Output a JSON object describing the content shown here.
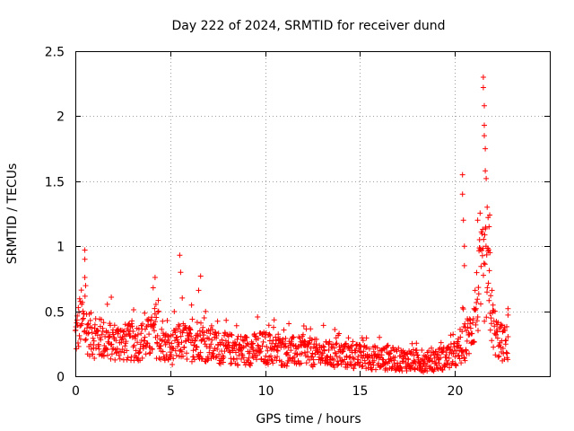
{
  "chart_data": {
    "type": "scatter",
    "title": "Day 222 of 2024, SRMTID for receiver dund",
    "xlabel": "GPS time / hours",
    "ylabel": "SRMTID / TECUs",
    "xlim": [
      0,
      25
    ],
    "ylim": [
      0,
      2.5
    ],
    "xticks": [
      0,
      5,
      10,
      15,
      20
    ],
    "xtick_labels": [
      "0",
      "5",
      "10",
      "15",
      "20"
    ],
    "yticks": [
      0,
      0.5,
      1,
      1.5,
      2,
      2.5
    ],
    "ytick_labels": [
      "0",
      "0.5",
      "1",
      "1.5",
      "2",
      "2.5"
    ],
    "grid": true,
    "marker": "+",
    "series": [
      {
        "name": "SRMTID",
        "color": "#ff0000",
        "envelope": {
          "hours": [
            0.0,
            0.3,
            0.5,
            0.8,
            1.0,
            1.5,
            2.0,
            2.5,
            3.0,
            3.5,
            4.0,
            4.2,
            4.5,
            5.0,
            5.4,
            5.6,
            6.0,
            6.5,
            6.8,
            7.0,
            7.5,
            8.0,
            9.0,
            10.0,
            10.5,
            11.0,
            12.0,
            12.5,
            13.0,
            14.0,
            15.0,
            16.0,
            17.0,
            18.0,
            18.5,
            19.0,
            19.5,
            20.0,
            20.3,
            20.5,
            20.8,
            21.0,
            21.2,
            21.4,
            21.6,
            21.8,
            22.0,
            22.2,
            22.5,
            22.8
          ],
          "values": [
            0.3,
            0.45,
            0.38,
            0.32,
            0.3,
            0.28,
            0.27,
            0.26,
            0.26,
            0.27,
            0.3,
            0.32,
            0.25,
            0.2,
            0.25,
            0.28,
            0.24,
            0.3,
            0.26,
            0.24,
            0.22,
            0.21,
            0.2,
            0.22,
            0.2,
            0.19,
            0.19,
            0.18,
            0.17,
            0.16,
            0.15,
            0.14,
            0.13,
            0.12,
            0.11,
            0.13,
            0.14,
            0.16,
            0.2,
            0.26,
            0.33,
            0.45,
            0.6,
            0.75,
            0.8,
            0.65,
            0.4,
            0.3,
            0.25,
            0.25
          ]
        },
        "spikes": [
          {
            "x": 0.5,
            "y": 0.97
          },
          {
            "x": 0.5,
            "y": 0.9
          },
          {
            "x": 0.5,
            "y": 0.76
          },
          {
            "x": 4.2,
            "y": 0.76
          },
          {
            "x": 4.1,
            "y": 0.68
          },
          {
            "x": 5.5,
            "y": 0.93
          },
          {
            "x": 5.55,
            "y": 0.8
          },
          {
            "x": 6.6,
            "y": 0.77
          },
          {
            "x": 6.5,
            "y": 0.66
          },
          {
            "x": 20.4,
            "y": 1.55
          },
          {
            "x": 20.4,
            "y": 1.4
          },
          {
            "x": 20.45,
            "y": 1.2
          },
          {
            "x": 20.5,
            "y": 1.0
          },
          {
            "x": 20.5,
            "y": 0.85
          },
          {
            "x": 21.5,
            "y": 2.3
          },
          {
            "x": 21.5,
            "y": 2.22
          },
          {
            "x": 21.55,
            "y": 2.08
          },
          {
            "x": 21.55,
            "y": 1.93
          },
          {
            "x": 21.55,
            "y": 1.85
          },
          {
            "x": 21.6,
            "y": 1.75
          },
          {
            "x": 21.6,
            "y": 1.58
          },
          {
            "x": 21.65,
            "y": 1.52
          },
          {
            "x": 21.7,
            "y": 1.3
          },
          {
            "x": 21.75,
            "y": 1.22
          },
          {
            "x": 21.8,
            "y": 1.15
          },
          {
            "x": 21.2,
            "y": 1.2
          },
          {
            "x": 21.3,
            "y": 1.05
          },
          {
            "x": 21.85,
            "y": 0.95
          },
          {
            "x": 22.8,
            "y": 0.52
          },
          {
            "x": 22.8,
            "y": 0.47
          }
        ],
        "point_count": 1300
      }
    ]
  }
}
